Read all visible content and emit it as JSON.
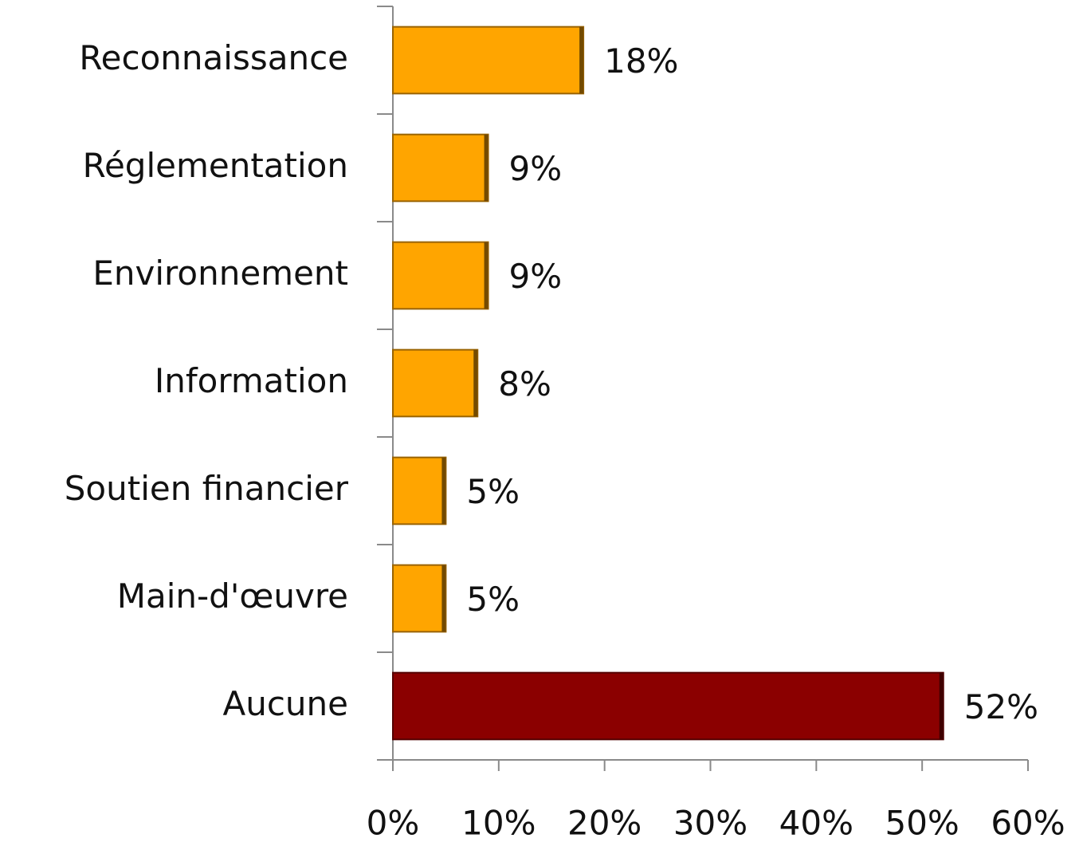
{
  "chart_data": {
    "type": "bar",
    "orientation": "horizontal",
    "categories": [
      "Reconnaissance",
      "Réglementation",
      "Environnement",
      "Information",
      "Soutien financier",
      "Main-d'œuvre",
      "Aucune"
    ],
    "values": [
      18,
      9,
      9,
      8,
      5,
      5,
      52
    ],
    "value_labels": [
      "18%",
      "9%",
      "9%",
      "8%",
      "5%",
      "5%",
      "52%"
    ],
    "colors": [
      "#ffa500",
      "#ffa500",
      "#ffa500",
      "#ffa500",
      "#ffa500",
      "#ffa500",
      "#8b0000"
    ],
    "xlim": [
      0,
      60
    ],
    "xticks": [
      {
        "value": 0,
        "label": "0%"
      },
      {
        "value": 10,
        "label": "10%"
      },
      {
        "value": 20,
        "label": "20%"
      },
      {
        "value": 30,
        "label": "30%"
      },
      {
        "value": 40,
        "label": "40%"
      },
      {
        "value": 50,
        "label": "50%"
      },
      {
        "value": 60,
        "label": "60%"
      }
    ],
    "grid": false
  }
}
